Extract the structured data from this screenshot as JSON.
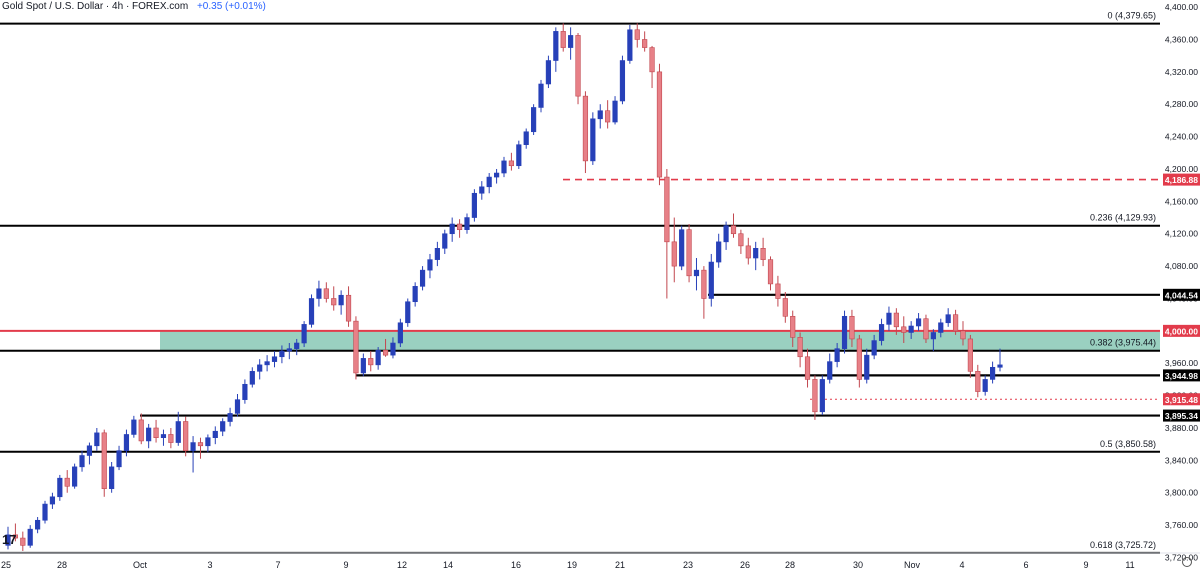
{
  "header": {
    "symbol_text": "Gold Spot / U.S. Dollar · 4h · FOREX.com",
    "change_text": "+0.35 (+0.01%)"
  },
  "logo_text": "17",
  "colors": {
    "up": "#2740b8",
    "down": "#e78087",
    "down_stroke": "#c2474f",
    "zone": "#8fcbb9",
    "zone_edge": "#e23b4b",
    "level": "#000000",
    "red": "#e23b4b"
  },
  "chart_data": {
    "type": "candlestick",
    "title": "Gold Spot / U.S. Dollar · 4h · FOREX.com",
    "ylim": [
      3700,
      4405
    ],
    "y_ticks": [
      "4,400.00",
      "4,360.00",
      "4,320.00",
      "4,280.00",
      "4,240.00",
      "4,200.00",
      "4,160.00",
      "4,120.00",
      "4,080.00",
      "4,040.00",
      "4,000.00",
      "3,960.00",
      "3,920.00",
      "3,880.00",
      "3,840.00",
      "3,800.00",
      "3,760.00",
      "3,720.00"
    ],
    "x_ticks": [
      "25",
      "28",
      "Oct",
      "3",
      "7",
      "9",
      "12",
      "14",
      "16",
      "19",
      "21",
      "23",
      "26",
      "28",
      "30",
      "Nov",
      "4",
      "6",
      "9",
      "11"
    ],
    "levels": [
      {
        "label": "0 (4,379.65)",
        "value": 4379.65
      },
      {
        "label": "0.236 (4,129.93)",
        "value": 4129.93
      },
      {
        "label": "0.382 (3,975.44)",
        "value": 3975.44
      },
      {
        "label": "0.5 (3,850.58)",
        "value": 3850.58
      },
      {
        "label": "0.618 (3,725.72)",
        "value": 3725.72
      }
    ],
    "horizontal_lines": [
      {
        "label": "4,044.54",
        "value": 4044.54,
        "from": "Oct 24",
        "style": "solid"
      },
      {
        "label": "3,944.98",
        "value": 3944.98,
        "from": "Oct 9",
        "style": "solid"
      },
      {
        "label": "3,895.34",
        "value": 3895.34,
        "from": "Oct 1",
        "style": "solid"
      }
    ],
    "red_lines": [
      {
        "label": "4,186.88",
        "value": 4186.88,
        "from": "Oct 17",
        "style": "dashed"
      },
      {
        "label": "3,915.48",
        "value": 3915.48,
        "from": "Oct 29",
        "style": "dotted"
      }
    ],
    "zone": {
      "from": 3975.44,
      "to": 4000.0,
      "start": "Oct 2"
    },
    "zone_top_label": "4,000.00",
    "ohlc": [
      [
        3735,
        3758,
        3730,
        3748
      ],
      [
        3748,
        3762,
        3740,
        3744
      ],
      [
        3744,
        3752,
        3728,
        3735
      ],
      [
        3735,
        3760,
        3732,
        3755
      ],
      [
        3755,
        3770,
        3750,
        3766
      ],
      [
        3766,
        3790,
        3762,
        3786
      ],
      [
        3786,
        3800,
        3780,
        3795
      ],
      [
        3795,
        3822,
        3790,
        3818
      ],
      [
        3818,
        3828,
        3800,
        3808
      ],
      [
        3808,
        3836,
        3805,
        3832
      ],
      [
        3832,
        3852,
        3826,
        3846
      ],
      [
        3846,
        3862,
        3835,
        3858
      ],
      [
        3858,
        3880,
        3852,
        3874
      ],
      [
        3874,
        3878,
        3795,
        3805
      ],
      [
        3805,
        3838,
        3800,
        3832
      ],
      [
        3832,
        3858,
        3828,
        3852
      ],
      [
        3852,
        3878,
        3845,
        3872
      ],
      [
        3872,
        3895,
        3868,
        3890
      ],
      [
        3890,
        3898,
        3860,
        3864
      ],
      [
        3864,
        3885,
        3855,
        3880
      ],
      [
        3880,
        3890,
        3862,
        3868
      ],
      [
        3868,
        3878,
        3858,
        3872
      ],
      [
        3872,
        3880,
        3855,
        3862
      ],
      [
        3862,
        3900,
        3858,
        3888
      ],
      [
        3888,
        3894,
        3845,
        3852
      ],
      [
        3852,
        3870,
        3825,
        3862
      ],
      [
        3862,
        3868,
        3842,
        3858
      ],
      [
        3858,
        3872,
        3850,
        3868
      ],
      [
        3868,
        3882,
        3860,
        3876
      ],
      [
        3876,
        3892,
        3870,
        3888
      ],
      [
        3888,
        3905,
        3882,
        3898
      ],
      [
        3898,
        3922,
        3894,
        3915
      ],
      [
        3915,
        3940,
        3910,
        3934
      ],
      [
        3934,
        3955,
        3930,
        3950
      ],
      [
        3950,
        3965,
        3940,
        3958
      ],
      [
        3958,
        3970,
        3950,
        3962
      ],
      [
        3962,
        3975,
        3955,
        3968
      ],
      [
        3968,
        3982,
        3960,
        3975
      ],
      [
        3975,
        3985,
        3965,
        3978
      ],
      [
        3978,
        3990,
        3970,
        3985
      ],
      [
        3985,
        4012,
        3980,
        4008
      ],
      [
        4008,
        4045,
        4004,
        4040
      ],
      [
        4040,
        4062,
        4030,
        4052
      ],
      [
        4052,
        4060,
        4035,
        4040
      ],
      [
        4040,
        4055,
        4025,
        4032
      ],
      [
        4032,
        4050,
        4020,
        4044
      ],
      [
        4044,
        4055,
        4005,
        4012
      ],
      [
        4012,
        4018,
        3940,
        3948
      ],
      [
        3948,
        3972,
        3944,
        3966
      ],
      [
        3966,
        3975,
        3950,
        3958
      ],
      [
        3958,
        3980,
        3952,
        3976
      ],
      [
        3976,
        3990,
        3968,
        3970
      ],
      [
        3970,
        3992,
        3966,
        3985
      ],
      [
        3985,
        4015,
        3980,
        4010
      ],
      [
        4010,
        4040,
        4005,
        4036
      ],
      [
        4036,
        4060,
        4030,
        4055
      ],
      [
        4055,
        4080,
        4050,
        4075
      ],
      [
        4075,
        4095,
        4065,
        4088
      ],
      [
        4088,
        4110,
        4080,
        4102
      ],
      [
        4102,
        4125,
        4095,
        4120
      ],
      [
        4120,
        4140,
        4110,
        4132
      ],
      [
        4132,
        4138,
        4115,
        4125
      ],
      [
        4125,
        4145,
        4120,
        4140
      ],
      [
        4140,
        4175,
        4135,
        4170
      ],
      [
        4170,
        4185,
        4162,
        4178
      ],
      [
        4178,
        4195,
        4170,
        4190
      ],
      [
        4190,
        4200,
        4182,
        4195
      ],
      [
        4195,
        4215,
        4190,
        4210
      ],
      [
        4210,
        4220,
        4198,
        4204
      ],
      [
        4204,
        4235,
        4200,
        4230
      ],
      [
        4230,
        4250,
        4225,
        4246
      ],
      [
        4246,
        4280,
        4242,
        4276
      ],
      [
        4276,
        4310,
        4270,
        4305
      ],
      [
        4305,
        4340,
        4300,
        4334
      ],
      [
        4334,
        4375,
        4320,
        4370
      ],
      [
        4370,
        4380,
        4345,
        4350
      ],
      [
        4350,
        4375,
        4335,
        4365
      ],
      [
        4365,
        4368,
        4280,
        4290
      ],
      [
        4290,
        4296,
        4195,
        4210
      ],
      [
        4210,
        4270,
        4205,
        4262
      ],
      [
        4262,
        4280,
        4250,
        4272
      ],
      [
        4272,
        4285,
        4250,
        4258
      ],
      [
        4258,
        4290,
        4255,
        4284
      ],
      [
        4284,
        4340,
        4280,
        4334
      ],
      [
        4334,
        4378,
        4330,
        4372
      ],
      [
        4372,
        4380,
        4350,
        4360
      ],
      [
        4360,
        4370,
        4345,
        4350
      ],
      [
        4350,
        4352,
        4300,
        4320
      ],
      [
        4320,
        4330,
        4180,
        4190
      ],
      [
        4190,
        4200,
        4040,
        4110
      ],
      [
        4110,
        4140,
        4060,
        4080
      ],
      [
        4080,
        4130,
        4075,
        4125
      ],
      [
        4125,
        4132,
        4060,
        4068
      ],
      [
        4068,
        4090,
        4050,
        4075
      ],
      [
        4075,
        4080,
        4015,
        4040
      ],
      [
        4040,
        4095,
        4030,
        4085
      ],
      [
        4085,
        4120,
        4078,
        4110
      ],
      [
        4110,
        4135,
        4100,
        4130
      ],
      [
        4130,
        4145,
        4115,
        4120
      ],
      [
        4120,
        4125,
        4095,
        4105
      ],
      [
        4105,
        4115,
        4082,
        4090
      ],
      [
        4090,
        4110,
        4075,
        4102
      ],
      [
        4102,
        4115,
        4080,
        4088
      ],
      [
        4088,
        4092,
        4050,
        4058
      ],
      [
        4058,
        4068,
        4030,
        4040
      ],
      [
        4040,
        4048,
        4010,
        4018
      ],
      [
        4018,
        4025,
        3980,
        3992
      ],
      [
        3992,
        3998,
        3955,
        3968
      ],
      [
        3968,
        3978,
        3930,
        3940
      ],
      [
        3940,
        3945,
        3890,
        3900
      ],
      [
        3900,
        3945,
        3896,
        3940
      ],
      [
        3940,
        3972,
        3935,
        3962
      ],
      [
        3962,
        3985,
        3955,
        3978
      ],
      [
        3978,
        4025,
        3972,
        4018
      ],
      [
        4018,
        4026,
        3980,
        3990
      ],
      [
        3990,
        3995,
        3930,
        3940
      ],
      [
        3940,
        3978,
        3935,
        3970
      ],
      [
        3970,
        3995,
        3965,
        3988
      ],
      [
        3988,
        4015,
        3982,
        4008
      ],
      [
        4008,
        4030,
        4000,
        4022
      ],
      [
        4022,
        4028,
        3995,
        4005
      ],
      [
        4005,
        4018,
        3985,
        3998
      ],
      [
        3998,
        4012,
        3990,
        4006
      ],
      [
        4006,
        4022,
        4000,
        4015
      ],
      [
        4015,
        4020,
        3985,
        3990
      ],
      [
        3990,
        4002,
        3975,
        3998
      ],
      [
        3998,
        4015,
        3992,
        4010
      ],
      [
        4010,
        4028,
        4005,
        4020
      ],
      [
        4020,
        4026,
        3995,
        4000
      ],
      [
        4000,
        4012,
        3982,
        3990
      ],
      [
        3990,
        3995,
        3942,
        3950
      ],
      [
        3950,
        3958,
        3918,
        3925
      ],
      [
        3925,
        3945,
        3920,
        3940
      ],
      [
        3940,
        3962,
        3935,
        3955
      ],
      [
        3955,
        3978,
        3950,
        3958
      ]
    ]
  }
}
